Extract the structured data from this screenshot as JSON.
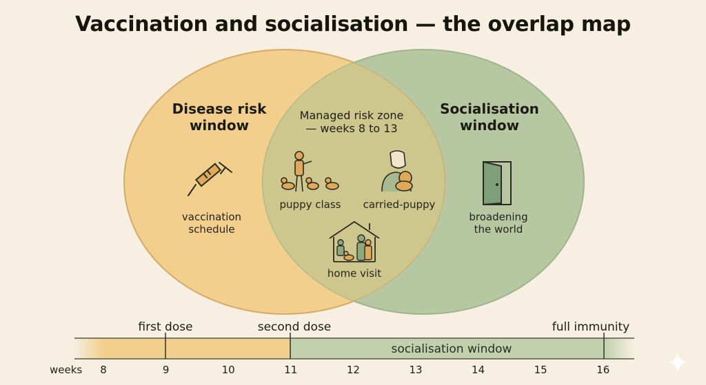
{
  "title": "Vaccination and socialisation — the overlap map",
  "venn": {
    "left_heading": [
      "Disease risk",
      "window"
    ],
    "right_heading": [
      "Socialisation",
      "window"
    ],
    "overlap_heading": [
      "Managed risk zone",
      "— weeks 8 to 13"
    ],
    "left_item": {
      "label": [
        "vaccination",
        "schedule"
      ],
      "icon": "syringe-icon"
    },
    "right_item": {
      "label": [
        "broadening",
        "the world"
      ],
      "icon": "open-door-icon"
    },
    "overlap_items": [
      {
        "label": "puppy class",
        "icon": "puppy-class-icon"
      },
      {
        "label": "carried-puppy",
        "icon": "carried-puppy-icon"
      },
      {
        "label": "home visit",
        "icon": "home-visit-icon"
      }
    ],
    "colors": {
      "left_fill": "#f2cf8d",
      "right_fill": "#b7c7a2",
      "overlap_fill": "#cdc78e",
      "left_stroke": "#dfb06a",
      "right_stroke": "#9fb48a"
    }
  },
  "timeline": {
    "axis_label": "weeks",
    "ticks": [
      "8",
      "9",
      "10",
      "11",
      "12",
      "13",
      "14",
      "15",
      "16"
    ],
    "markers": [
      {
        "label": "first dose",
        "week": 9
      },
      {
        "label": "second dose",
        "week": 11
      },
      {
        "label": "full immunity",
        "week": 16
      }
    ],
    "band_label": "socialisation window",
    "risk_band_weeks": [
      8,
      11
    ],
    "socialisation_band_weeks": [
      11,
      16
    ],
    "colors": {
      "risk": "#f2cf8d",
      "socialisation": "#c3d0ae"
    }
  }
}
